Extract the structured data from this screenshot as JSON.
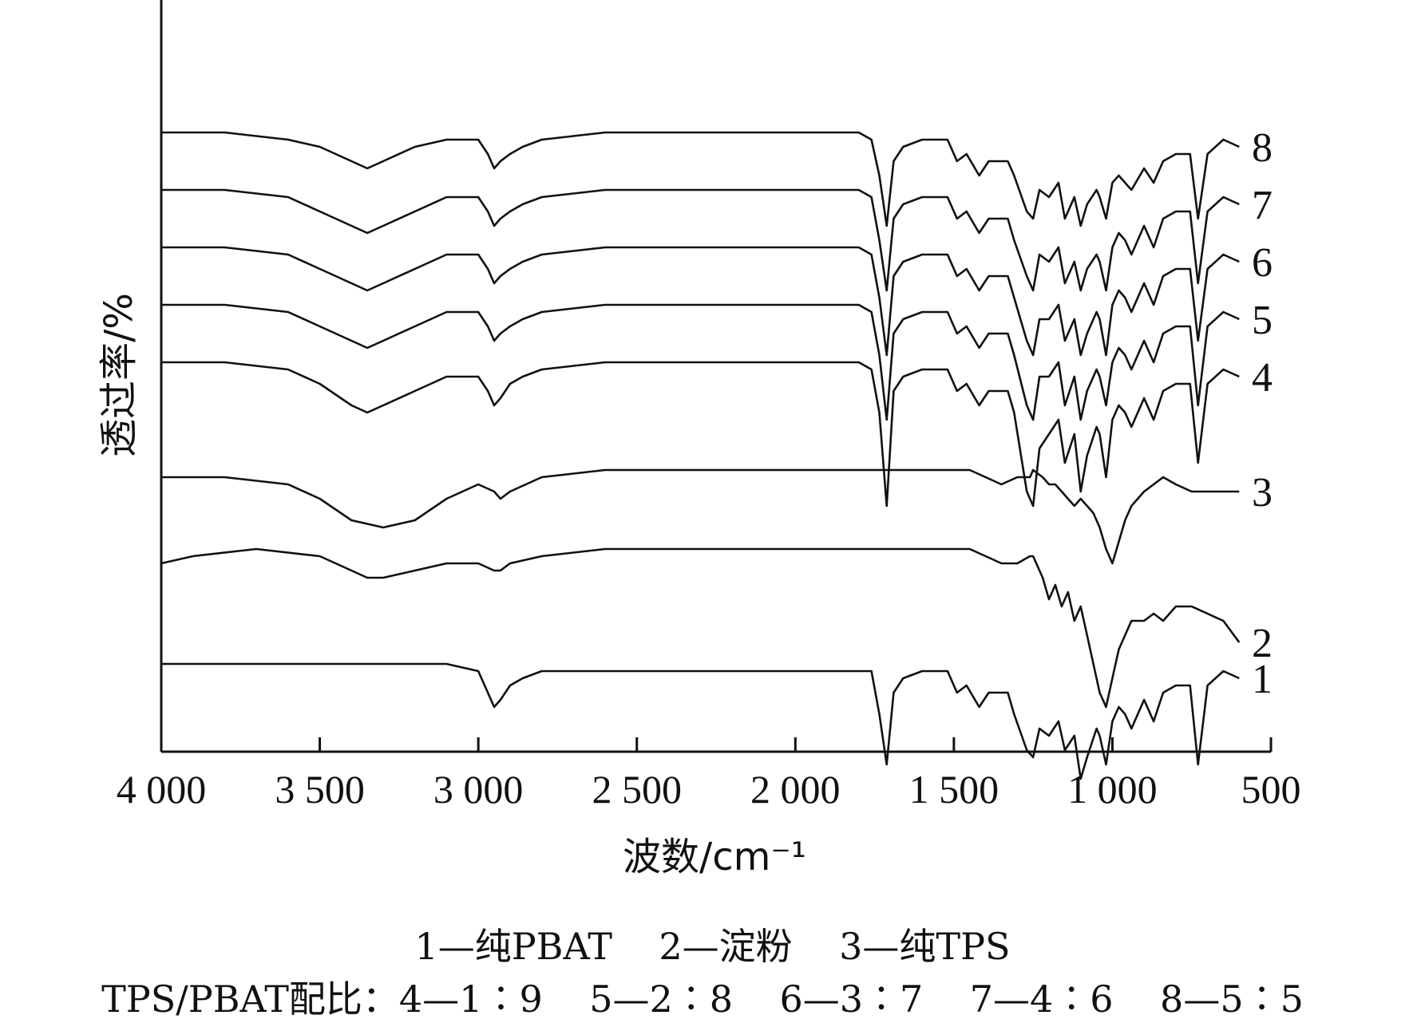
{
  "chart_data": {
    "type": "line",
    "title": "",
    "xlabel": "波数/cm⁻¹",
    "ylabel": "透过率/%",
    "xlim": [
      4000,
      500
    ],
    "x_reversed": true,
    "x_ticks": [
      4000,
      3500,
      3000,
      2500,
      2000,
      1500,
      1000,
      500
    ],
    "x_tick_labels": [
      "4 000",
      "3 500",
      "3 000",
      "2 500",
      "2 000",
      "1 500",
      "1 000",
      "500"
    ],
    "ylim": [
      0,
      100
    ],
    "grid": false,
    "series": [
      {
        "name": "1",
        "offset": 8,
        "x": [
          4000,
          3100,
          3000,
          2970,
          2950,
          2930,
          2900,
          2860,
          2800,
          1760,
          1735,
          1712,
          1690,
          1660,
          1600,
          1520,
          1490,
          1460,
          1420,
          1390,
          1330,
          1310,
          1270,
          1250,
          1230,
          1200,
          1170,
          1150,
          1120,
          1100,
          1080,
          1050,
          1040,
          1020,
          1000,
          980,
          960,
          940,
          900,
          870,
          840,
          800,
          780,
          755,
          730,
          700,
          650,
          600
        ],
        "y": [
          92,
          92,
          91,
          88,
          86,
          87,
          89,
          90,
          91,
          91,
          85,
          78,
          88,
          90,
          91,
          91,
          88,
          89,
          86,
          88,
          88,
          85,
          80,
          79,
          83,
          82,
          84,
          80,
          82,
          76,
          79,
          83,
          82,
          78,
          84,
          86,
          85,
          83,
          87,
          84,
          88,
          89,
          89,
          89,
          78,
          89,
          91,
          90
        ]
      },
      {
        "name": "2",
        "offset": 30,
        "x": [
          4000,
          3900,
          3700,
          3500,
          3400,
          3350,
          3300,
          3200,
          3100,
          3000,
          2950,
          2930,
          2900,
          2800,
          2600,
          2400,
          2200,
          2000,
          1800,
          1700,
          1650,
          1550,
          1450,
          1400,
          1350,
          1300,
          1260,
          1250,
          1220,
          1200,
          1180,
          1160,
          1140,
          1120,
          1100,
          1080,
          1060,
          1040,
          1020,
          1000,
          980,
          960,
          940,
          900,
          870,
          840,
          800,
          750,
          700,
          650,
          600
        ],
        "y": [
          84,
          85,
          86,
          85,
          83,
          82,
          82,
          83,
          84,
          84,
          83,
          83,
          84,
          85,
          86,
          86,
          86,
          86,
          86,
          86,
          86,
          86,
          86,
          85,
          84,
          84,
          85,
          85,
          82,
          79,
          81,
          78,
          80,
          76,
          78,
          74,
          70,
          66,
          64,
          68,
          72,
          74,
          76,
          76,
          77,
          76,
          78,
          78,
          77,
          76,
          73
        ]
      },
      {
        "name": "3",
        "offset": 42,
        "x": [
          4000,
          3800,
          3600,
          3500,
          3400,
          3300,
          3200,
          3100,
          3000,
          2950,
          2930,
          2900,
          2800,
          2600,
          2400,
          2200,
          2000,
          1800,
          1700,
          1650,
          1550,
          1450,
          1400,
          1350,
          1300,
          1260,
          1250,
          1220,
          1200,
          1180,
          1160,
          1140,
          1120,
          1100,
          1080,
          1060,
          1040,
          1020,
          1000,
          980,
          960,
          940,
          900,
          870,
          840,
          800,
          750,
          700,
          650,
          600
        ],
        "y": [
          84,
          84,
          83,
          81,
          78,
          77,
          78,
          81,
          83,
          82,
          81,
          82,
          84,
          85,
          85,
          85,
          85,
          85,
          85,
          85,
          85,
          85,
          84,
          83,
          84,
          84,
          85,
          84,
          83,
          83,
          82,
          81,
          80,
          81,
          80,
          79,
          77,
          74,
          72,
          75,
          78,
          80,
          82,
          83,
          84,
          83,
          82,
          82,
          82,
          82
        ]
      },
      {
        "name": "4",
        "offset": 50,
        "x": [
          4000,
          3800,
          3600,
          3500,
          3400,
          3350,
          3300,
          3200,
          3100,
          3000,
          2970,
          2950,
          2930,
          2900,
          2860,
          2800,
          2600,
          2200,
          1800,
          1760,
          1735,
          1712,
          1690,
          1660,
          1600,
          1520,
          1490,
          1460,
          1420,
          1390,
          1330,
          1310,
          1270,
          1250,
          1230,
          1200,
          1170,
          1150,
          1120,
          1100,
          1080,
          1050,
          1040,
          1020,
          1000,
          980,
          960,
          940,
          900,
          870,
          840,
          800,
          780,
          755,
          730,
          700,
          650,
          600
        ],
        "y": [
          92,
          92,
          91,
          89,
          86,
          85,
          86,
          88,
          90,
          90,
          88,
          86,
          87,
          89,
          90,
          91,
          92,
          92,
          92,
          91,
          85,
          72,
          88,
          90,
          91,
          91,
          88,
          89,
          86,
          88,
          88,
          85,
          74,
          72,
          80,
          82,
          84,
          78,
          82,
          74,
          79,
          83,
          82,
          76,
          84,
          86,
          85,
          83,
          87,
          84,
          88,
          89,
          89,
          89,
          78,
          89,
          91,
          90
        ]
      },
      {
        "name": "5",
        "offset": 58,
        "x": [
          4000,
          3800,
          3600,
          3500,
          3400,
          3350,
          3300,
          3200,
          3100,
          3000,
          2970,
          2950,
          2930,
          2900,
          2860,
          2800,
          2600,
          2200,
          1800,
          1760,
          1735,
          1712,
          1690,
          1660,
          1600,
          1520,
          1490,
          1460,
          1420,
          1390,
          1330,
          1310,
          1270,
          1250,
          1230,
          1200,
          1170,
          1150,
          1120,
          1100,
          1080,
          1050,
          1040,
          1020,
          1000,
          980,
          960,
          940,
          900,
          870,
          840,
          800,
          780,
          755,
          730,
          700,
          650,
          600
        ],
        "y": [
          92,
          92,
          91,
          89,
          87,
          86,
          87,
          89,
          91,
          91,
          89,
          87,
          88,
          89,
          90,
          91,
          92,
          92,
          92,
          91,
          85,
          76,
          88,
          90,
          91,
          91,
          88,
          89,
          86,
          88,
          88,
          85,
          78,
          76,
          82,
          82,
          84,
          78,
          82,
          76,
          80,
          83,
          82,
          78,
          84,
          86,
          85,
          83,
          87,
          84,
          88,
          89,
          89,
          89,
          78,
          89,
          91,
          90
        ]
      },
      {
        "name": "6",
        "offset": 66,
        "x": [
          4000,
          3800,
          3600,
          3500,
          3400,
          3350,
          3300,
          3200,
          3100,
          3000,
          2970,
          2950,
          2930,
          2900,
          2860,
          2800,
          2600,
          2200,
          1800,
          1760,
          1735,
          1712,
          1690,
          1660,
          1600,
          1520,
          1490,
          1460,
          1420,
          1390,
          1330,
          1310,
          1270,
          1250,
          1230,
          1200,
          1170,
          1150,
          1120,
          1100,
          1080,
          1050,
          1040,
          1020,
          1000,
          980,
          960,
          940,
          900,
          870,
          840,
          800,
          780,
          755,
          730,
          700,
          650,
          600
        ],
        "y": [
          92,
          92,
          91,
          89,
          87,
          86,
          87,
          89,
          91,
          91,
          89,
          87,
          88,
          89,
          90,
          91,
          92,
          92,
          92,
          91,
          85,
          77,
          88,
          90,
          91,
          91,
          88,
          89,
          86,
          88,
          88,
          85,
          79,
          77,
          82,
          82,
          84,
          79,
          82,
          77,
          80,
          83,
          82,
          77,
          84,
          86,
          85,
          83,
          87,
          84,
          88,
          89,
          89,
          89,
          79,
          89,
          91,
          90
        ]
      },
      {
        "name": "7",
        "offset": 74,
        "x": [
          4000,
          3800,
          3600,
          3500,
          3400,
          3350,
          3300,
          3200,
          3100,
          3000,
          2970,
          2950,
          2930,
          2900,
          2860,
          2800,
          2600,
          2200,
          1800,
          1760,
          1735,
          1712,
          1690,
          1660,
          1600,
          1520,
          1490,
          1460,
          1420,
          1390,
          1330,
          1310,
          1270,
          1250,
          1230,
          1200,
          1170,
          1150,
          1120,
          1100,
          1080,
          1050,
          1040,
          1020,
          1000,
          980,
          960,
          940,
          900,
          870,
          840,
          800,
          780,
          755,
          730,
          700,
          650,
          600
        ],
        "y": [
          92,
          92,
          91,
          89,
          87,
          86,
          87,
          89,
          91,
          91,
          89,
          87,
          88,
          89,
          90,
          91,
          92,
          92,
          92,
          91,
          85,
          78,
          88,
          90,
          91,
          91,
          88,
          89,
          86,
          88,
          88,
          85,
          80,
          78,
          83,
          82,
          84,
          79,
          82,
          78,
          81,
          83,
          82,
          78,
          84,
          86,
          85,
          83,
          87,
          84,
          88,
          89,
          89,
          89,
          79,
          89,
          91,
          90
        ]
      },
      {
        "name": "8",
        "offset": 82,
        "x": [
          4000,
          3800,
          3600,
          3500,
          3400,
          3350,
          3300,
          3200,
          3100,
          3000,
          2970,
          2950,
          2930,
          2900,
          2860,
          2800,
          2600,
          2200,
          1800,
          1760,
          1735,
          1712,
          1690,
          1660,
          1600,
          1520,
          1490,
          1460,
          1420,
          1390,
          1330,
          1310,
          1270,
          1250,
          1230,
          1200,
          1170,
          1150,
          1120,
          1100,
          1080,
          1050,
          1040,
          1020,
          1000,
          980,
          960,
          940,
          900,
          870,
          840,
          800,
          780,
          755,
          730,
          700,
          650,
          600
        ],
        "y": [
          92,
          92,
          91,
          90,
          88,
          87,
          88,
          90,
          91,
          91,
          89,
          87,
          88,
          89,
          90,
          91,
          92,
          92,
          92,
          91,
          86,
          79,
          88,
          90,
          91,
          91,
          88,
          89,
          86,
          88,
          88,
          86,
          81,
          80,
          84,
          83,
          85,
          80,
          83,
          79,
          82,
          84,
          83,
          80,
          85,
          86,
          85,
          84,
          87,
          85,
          88,
          89,
          89,
          89,
          80,
          89,
          91,
          90
        ]
      }
    ],
    "caption": {
      "line1": "1—纯PBAT    2—淀粉    3—纯TPS",
      "line2": "TPS/PBAT配比：4—1∶9    5—2∶8    6—3∶7    7—4∶6    8—5∶5"
    }
  }
}
